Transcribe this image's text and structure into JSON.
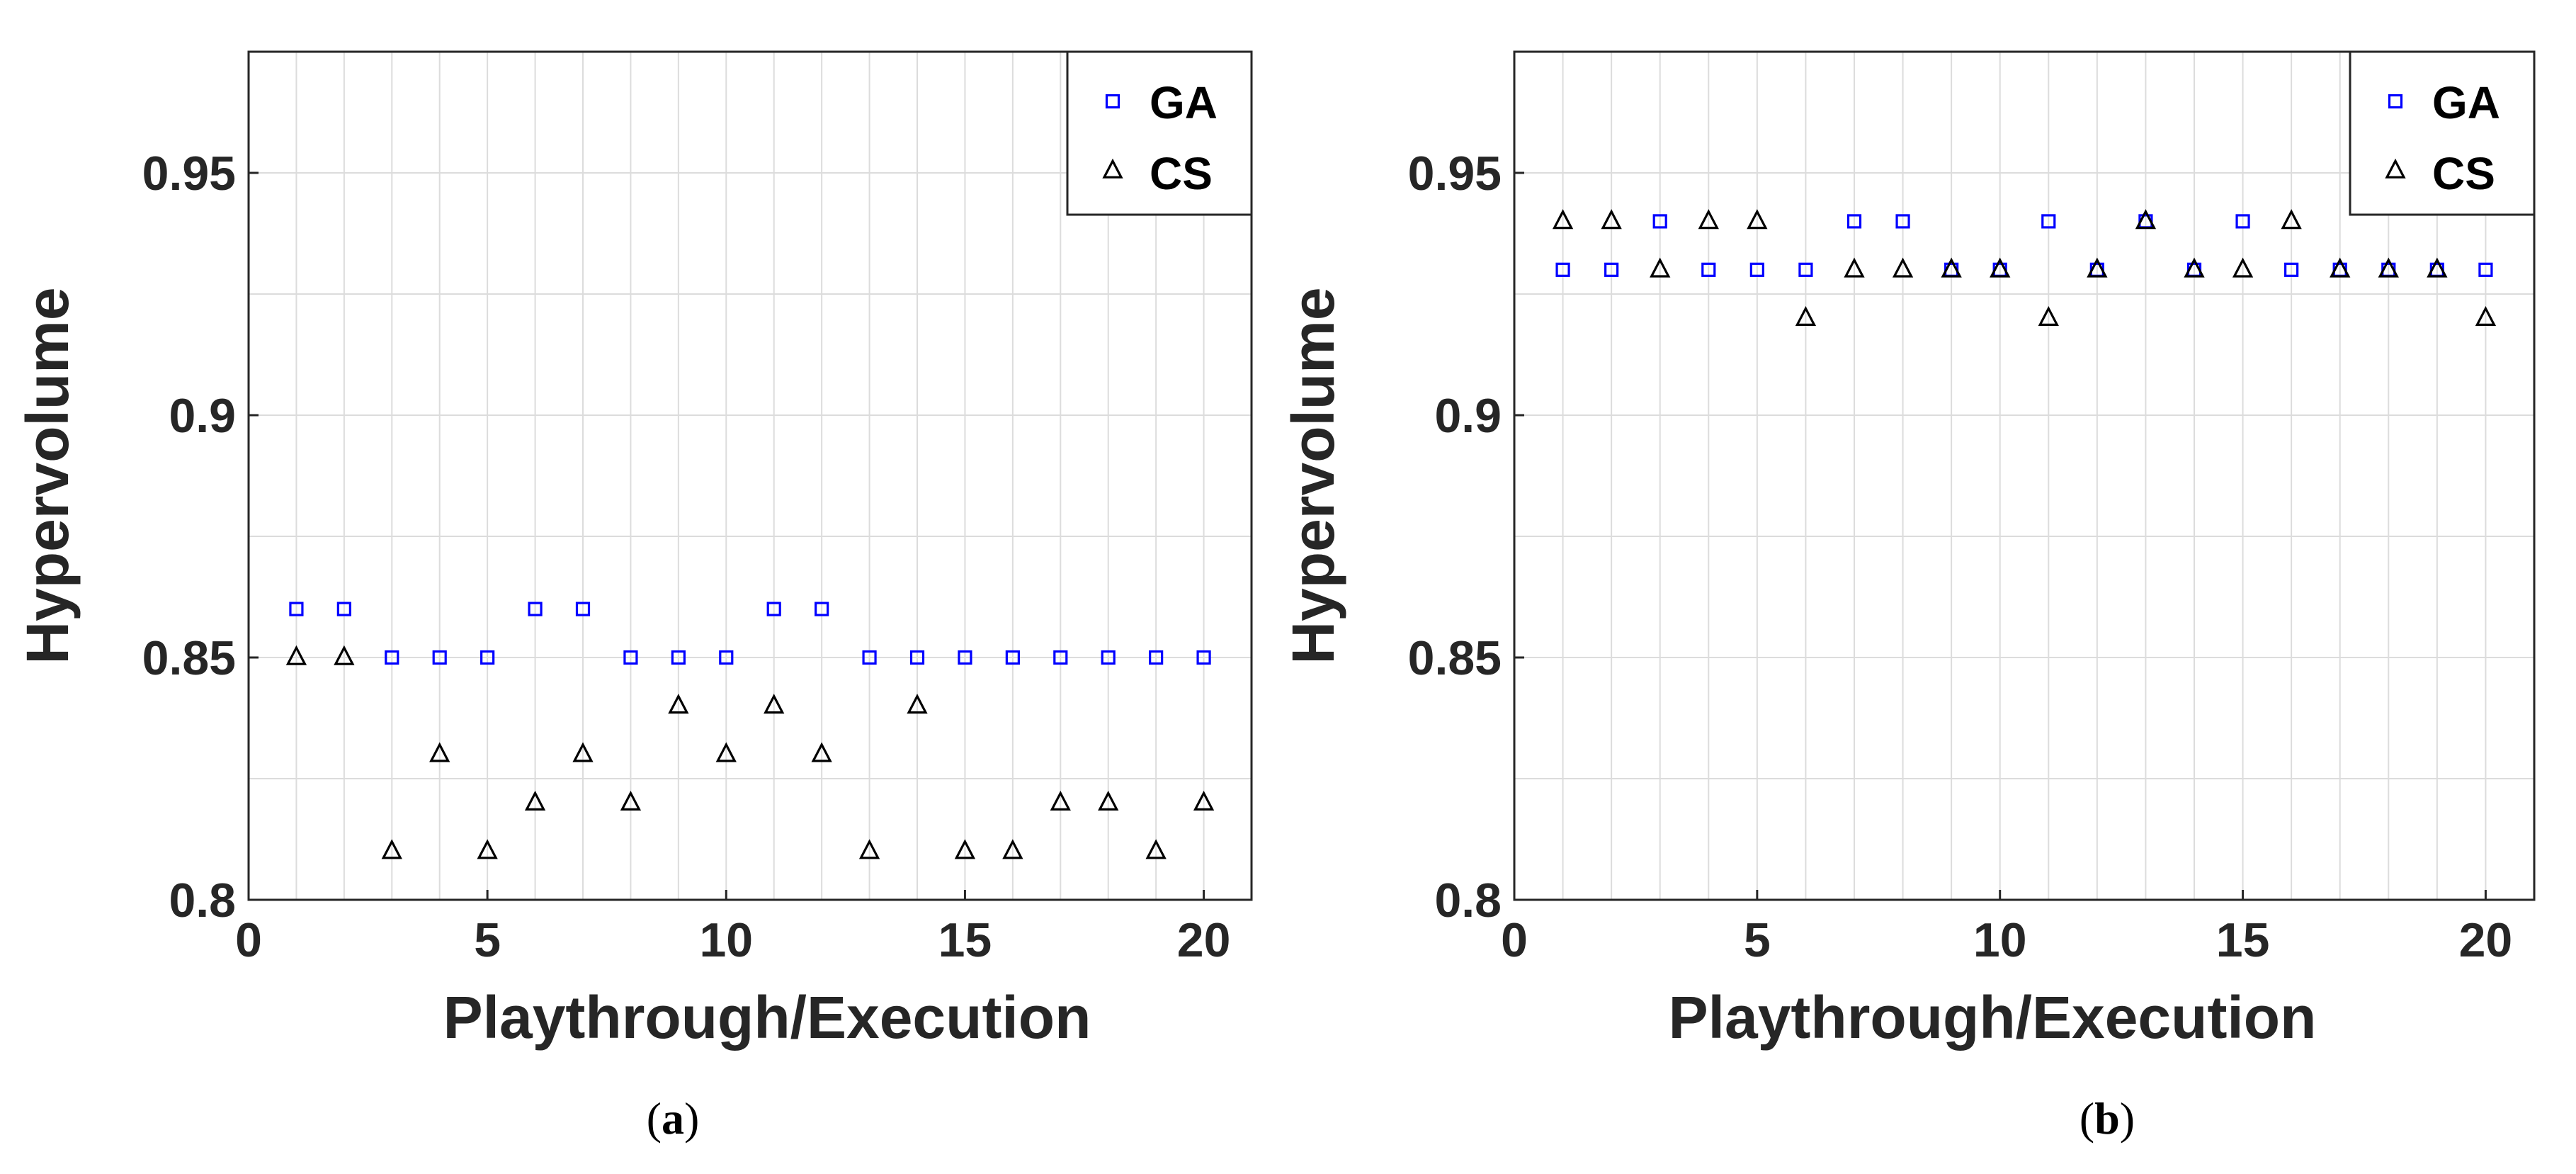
{
  "colors": {
    "ga": "#0000ff",
    "cs": "#000000",
    "axis": "#262626",
    "grid": "#dcdcdc"
  },
  "chart_data": [
    {
      "id": "a",
      "type": "scatter",
      "caption_open": "(",
      "caption_letter": "a",
      "caption_close": ")",
      "xlabel": "Playthrough/Execution",
      "ylabel": "Hypervolume",
      "xlim": [
        0,
        21
      ],
      "ylim": [
        0.8,
        0.975
      ],
      "xticks": [
        0,
        5,
        10,
        15,
        20
      ],
      "xtick_labels": [
        "0",
        "5",
        "10",
        "15",
        "20"
      ],
      "yticks": [
        0.8,
        0.85,
        0.9,
        0.95
      ],
      "ytick_labels": [
        "0.8",
        "0.85",
        "0.9",
        "0.95"
      ],
      "minor_ygrid": [
        0.825,
        0.875,
        0.925
      ],
      "grid": true,
      "legend": "top-right",
      "x": [
        1,
        2,
        3,
        4,
        5,
        6,
        7,
        8,
        9,
        10,
        11,
        12,
        13,
        14,
        15,
        16,
        17,
        18,
        19,
        20
      ],
      "series": [
        {
          "name": "GA",
          "marker": "square",
          "values": [
            0.86,
            0.86,
            0.85,
            0.85,
            0.85,
            0.86,
            0.86,
            0.85,
            0.85,
            0.85,
            0.86,
            0.86,
            0.85,
            0.85,
            0.85,
            0.85,
            0.85,
            0.85,
            0.85,
            0.85
          ]
        },
        {
          "name": "CS",
          "marker": "triangle",
          "values": [
            0.85,
            0.85,
            0.81,
            0.83,
            0.81,
            0.82,
            0.83,
            0.82,
            0.84,
            0.83,
            0.84,
            0.83,
            0.81,
            0.84,
            0.81,
            0.81,
            0.82,
            0.82,
            0.81,
            0.82
          ]
        }
      ]
    },
    {
      "id": "b",
      "type": "scatter",
      "caption_open": "(",
      "caption_letter": "b",
      "caption_close": ")",
      "xlabel": "Playthrough/Execution",
      "ylabel": "Hypervolume",
      "xlim": [
        0,
        21
      ],
      "ylim": [
        0.8,
        0.975
      ],
      "xticks": [
        0,
        5,
        10,
        15,
        20
      ],
      "xtick_labels": [
        "0",
        "5",
        "10",
        "15",
        "20"
      ],
      "yticks": [
        0.8,
        0.85,
        0.9,
        0.95
      ],
      "ytick_labels": [
        "0.8",
        "0.85",
        "0.9",
        "0.95"
      ],
      "minor_ygrid": [
        0.825,
        0.875,
        0.925
      ],
      "grid": true,
      "legend": "top-right",
      "x": [
        1,
        2,
        3,
        4,
        5,
        6,
        7,
        8,
        9,
        10,
        11,
        12,
        13,
        14,
        15,
        16,
        17,
        18,
        19,
        20
      ],
      "series": [
        {
          "name": "GA",
          "marker": "square",
          "values": [
            0.93,
            0.93,
            0.94,
            0.93,
            0.93,
            0.93,
            0.94,
            0.94,
            0.93,
            0.93,
            0.94,
            0.93,
            0.94,
            0.93,
            0.94,
            0.93,
            0.93,
            0.93,
            0.93,
            0.93
          ]
        },
        {
          "name": "CS",
          "marker": "triangle",
          "values": [
            0.94,
            0.94,
            0.93,
            0.94,
            0.94,
            0.92,
            0.93,
            0.93,
            0.93,
            0.93,
            0.92,
            0.93,
            0.94,
            0.93,
            0.93,
            0.94,
            0.93,
            0.93,
            0.93,
            0.92
          ]
        }
      ]
    }
  ]
}
